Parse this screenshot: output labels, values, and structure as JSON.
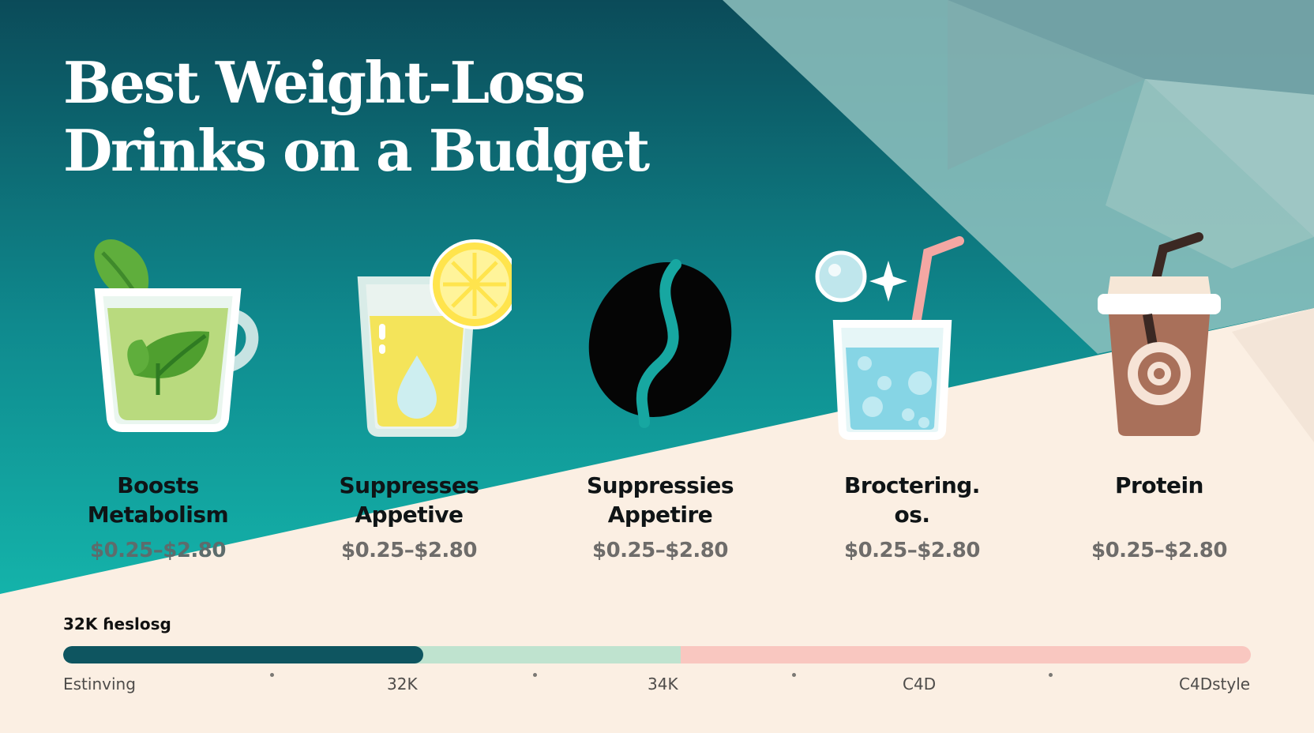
{
  "title_lines": [
    "Best Weight-Loss",
    "Drinks on a Budget"
  ],
  "drinks": [
    {
      "icon": "green-tea-mug-icon",
      "label_lines": [
        "Boosts",
        "Metabolism"
      ],
      "price": "$0.25–$2.80"
    },
    {
      "icon": "lemon-water-glass-icon",
      "label_lines": [
        "Suppresses",
        "Appetive"
      ],
      "price": "$0.25–$2.80"
    },
    {
      "icon": "coffee-bean-icon",
      "label_lines": [
        "Suppressies",
        "Appetire"
      ],
      "price": "$0.25–$2.80"
    },
    {
      "icon": "sparkling-water-glass-icon",
      "label_lines": [
        "Broctering.",
        "os."
      ],
      "price": "$0.25–$2.80"
    },
    {
      "icon": "protein-shake-cup-icon",
      "label_lines": [
        "Protein"
      ],
      "price": "$0.25–$2.80"
    }
  ],
  "progress": {
    "title": "32K ɦeslosg",
    "filled_fraction": 0.303,
    "mid_fraction": 0.52,
    "ticks": [
      "Estinving",
      "32K",
      "34K",
      "C4D",
      "C4Dstyle"
    ]
  },
  "colors": {
    "teal_dark": "#0b4b59",
    "teal_bright": "#14b3aa",
    "cream": "#fbefe3",
    "bar_fill": "#0e5560",
    "bar_mid": "#bfe3cf",
    "bar_rest": "#f9c7c0"
  }
}
